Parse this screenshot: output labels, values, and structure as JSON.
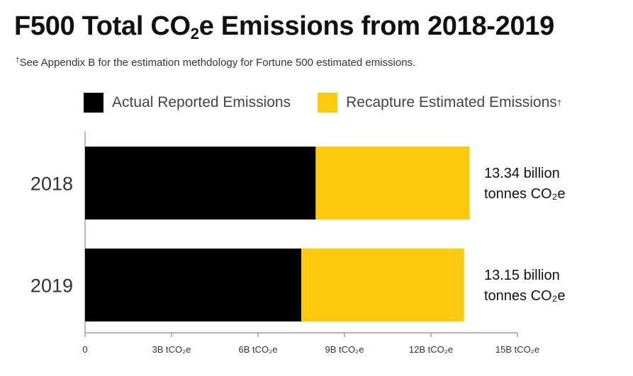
{
  "title_main": "F500 Total CO",
  "title_sub": "2",
  "title_rest": "e Emissions from 2018-2019",
  "subtitle_sup": "†",
  "subtitle": "See Appendix B for the estimation methdology for Fortune 500 estimated emissions.",
  "legend": {
    "actual": "Actual Reported Emissions",
    "estimated": "Recapture Estimated Emissions",
    "estimated_sup": "†"
  },
  "colors": {
    "actual": "#000000",
    "estimated": "#FFC90E",
    "axis": "#888888"
  },
  "chart_data": {
    "type": "bar",
    "orientation": "horizontal",
    "stacked": true,
    "categories": [
      "2018",
      "2019"
    ],
    "series": [
      {
        "name": "Actual Reported Emissions",
        "values": [
          8.0,
          7.5
        ]
      },
      {
        "name": "Recapture Estimated Emissions",
        "values": [
          5.34,
          5.65
        ]
      }
    ],
    "totals_labels": [
      [
        "13.34 billion",
        "tonnes CO₂e"
      ],
      [
        "13.15 billion",
        "tonnes CO₂e"
      ]
    ],
    "xlim": [
      0,
      15
    ],
    "ticks": [
      0,
      3,
      6,
      9,
      12,
      15
    ],
    "tick_labels": [
      "0",
      "3B tCO₂e",
      "6B tCO₂e",
      "9B tCO₂e",
      "12B tCO₂e",
      "15B tCO₂e"
    ],
    "xlabel": "",
    "ylabel": "",
    "legend_position": "top",
    "grid": false
  }
}
